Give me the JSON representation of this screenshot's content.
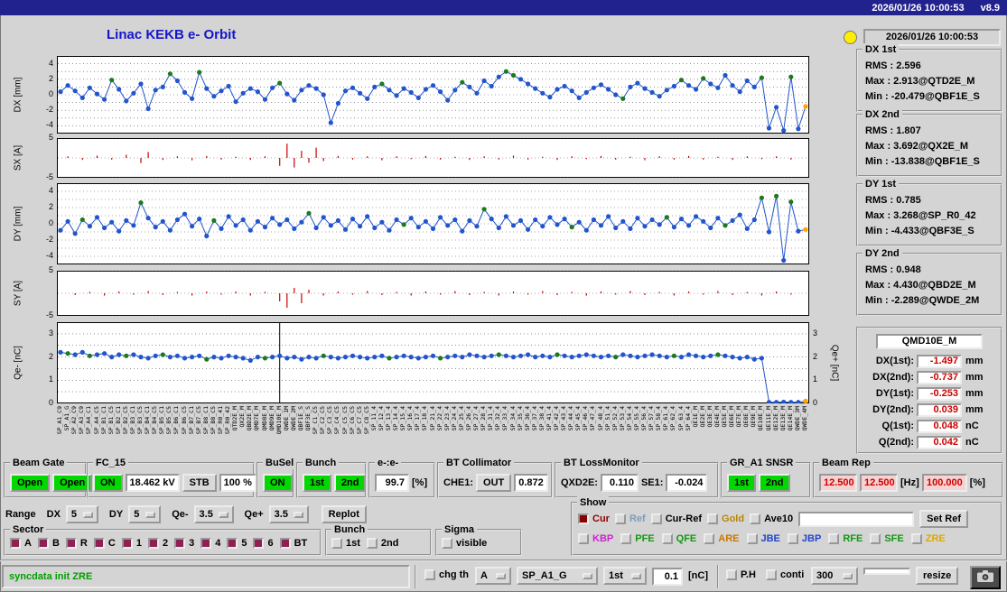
{
  "topbar": {
    "clock": "2026/01/26 10:00:53",
    "version": "v8.9"
  },
  "title": "Linac KEKB e- Orbit",
  "status_panel": {
    "timestamp": "2026/01/26 10:00:53",
    "groups": [
      {
        "label": "DX 1st",
        "rms": "RMS : 2.596",
        "max": "Max : 2.913@QTD2E_M",
        "min": "Min : -20.479@QBF1E_S"
      },
      {
        "label": "DX 2nd",
        "rms": "RMS : 1.807",
        "max": "Max : 3.692@QX2E_M",
        "min": "Min : -13.838@QBF1E_S"
      },
      {
        "label": "DY 1st",
        "rms": "RMS : 0.785",
        "max": "Max : 3.268@SP_R0_42",
        "min": "Min : -4.433@QBF3E_S"
      },
      {
        "label": "DY 2nd",
        "rms": "RMS : 0.948",
        "max": "Max : 4.430@QBD2E_M",
        "min": "Min : -2.289@QWDE_2M"
      }
    ],
    "monitor": {
      "name": "QMD10E_M",
      "rows": [
        {
          "label": "DX(1st):",
          "value": "-1.497",
          "unit": "mm"
        },
        {
          "label": "DX(2nd):",
          "value": "-0.737",
          "unit": "mm"
        },
        {
          "label": "DY(1st):",
          "value": "-0.253",
          "unit": "mm"
        },
        {
          "label": "DY(2nd):",
          "value": "0.039",
          "unit": "mm"
        },
        {
          "label": "Q(1st):",
          "value": "0.048",
          "unit": "nC"
        },
        {
          "label": "Q(2nd):",
          "value": "0.042",
          "unit": "nC"
        }
      ]
    }
  },
  "controls": {
    "beam_gate": {
      "label": "Beam Gate",
      "open1": "Open",
      "open2": "Open"
    },
    "fc15": {
      "label": "FC_15",
      "on": "ON",
      "kv": "18.462 kV",
      "stb": "STB",
      "pct": "100 %"
    },
    "busel": {
      "label": "BuSel",
      "on": "ON"
    },
    "bunch_top": {
      "label": "Bunch",
      "b1": "1st",
      "b2": "2nd"
    },
    "ee": {
      "label": "e-:e-",
      "value": "99.7",
      "unit": "[%]"
    },
    "bt_collimator": {
      "label": "BT Collimator",
      "che1": "CHE1:",
      "out": "OUT",
      "value": "0.872"
    },
    "bt_lossmonitor": {
      "label": "BT LossMonitor",
      "l1": "QXD2E:",
      "v1": "0.110",
      "l2": "SE1:",
      "v2": "-0.024"
    },
    "gr_a1": {
      "label": "GR_A1 SNSR",
      "b1": "1st",
      "b2": "2nd"
    },
    "beam_rep": {
      "label": "Beam Rep",
      "v1": "12.500",
      "v2": "12.500",
      "hz": "[Hz]",
      "v3": "100.000",
      "pct": "[%]"
    },
    "range": {
      "title": "Range",
      "dx_label": "DX",
      "dx": "5",
      "dy_label": "DY",
      "dy": "5",
      "qem_label": "Qe-",
      "qem": "3.5",
      "qep_label": "Qe+",
      "qep": "3.5",
      "replot": "Replot"
    },
    "sector": {
      "label": "Sector",
      "check_color": "#8b2252",
      "items": [
        "A",
        "B",
        "R",
        "C",
        "1",
        "2",
        "3",
        "4",
        "5",
        "6",
        "BT"
      ]
    },
    "bunch_bottom": {
      "label": "Bunch",
      "items": [
        "1st",
        "2nd"
      ]
    },
    "sigma": {
      "label": "Sigma",
      "items": [
        "visible"
      ]
    },
    "show": {
      "label": "Show",
      "row1": [
        {
          "text": "Cur",
          "color": "#8b0000",
          "checked": true,
          "box": "#8b0000"
        },
        {
          "text": "Ref",
          "color": "#7f9db9",
          "checked": false
        },
        {
          "text": "Cur-Ref",
          "color": "#000000",
          "checked": false
        },
        {
          "text": "Gold",
          "color": "#b8860b",
          "checked": false
        },
        {
          "text": "Ave10",
          "color": "#000000",
          "checked": false
        }
      ],
      "ref_input": "",
      "set_ref": "Set Ref",
      "row2": [
        {
          "text": "KBP",
          "color": "#cc22cc"
        },
        {
          "text": "PFE",
          "color": "#119911"
        },
        {
          "text": "QFE",
          "color": "#119911"
        },
        {
          "text": "ARE",
          "color": "#cc7700"
        },
        {
          "text": "JBE",
          "color": "#2244cc"
        },
        {
          "text": "JBP",
          "color": "#2244cc"
        },
        {
          "text": "RFE",
          "color": "#119911"
        },
        {
          "text": "SFE",
          "color": "#119911"
        },
        {
          "text": "ZRE",
          "color": "#e0a800"
        }
      ]
    },
    "footer": {
      "status": "syncdata init ZRE",
      "chg_th": "chg th",
      "dd_a": "A",
      "dd_sp": "SP_A1_G",
      "dd_bunch": "1st",
      "threshold": "0.1",
      "unit": "[nC]",
      "ph": "P.H",
      "conti": "conti",
      "dd_rep": "300",
      "blank": "",
      "resize": "resize"
    }
  },
  "chart_data": {
    "xlabels": [
      "SP_A1_C9",
      "SP_A1_G",
      "SP_A2_C9",
      "SP_A3_C9",
      "SP_A4_C1",
      "SP_A4_C5",
      "SP_B1_C1",
      "SP_B1_C5",
      "SP_B2_C1",
      "SP_B2_C5",
      "SP_B3_C1",
      "SP_B3_C5",
      "SP_B4_C1",
      "SP_B4_C5",
      "SP_B5_C1",
      "SP_B5_C5",
      "SP_B6_C1",
      "SP_B6_C5",
      "SP_B7_C1",
      "SP_B7_C5",
      "SP_B8_C1",
      "SP_B8_C5",
      "SP_R0_41",
      "SP_R0_42",
      "QTD2E_M",
      "QX2E_M",
      "QBD2E_M",
      "QMD7E_M",
      "QMD8E_M",
      "QMD9E_M",
      "QMD10E_M",
      "QWDE_1M",
      "QWDE_2M",
      "QBF1E_S",
      "QBF3E_S",
      "SP_C1_C5",
      "SP_C2_C5",
      "SP_C3_C5",
      "SP_C4_C5",
      "SP_C5_C5",
      "SP_C6_C5",
      "SP_C7_C5",
      "SP_C8_C5",
      "SP_11_4",
      "SP_12_4",
      "SP_13_4",
      "SP_14_4",
      "SP_15_4",
      "SP_16_4",
      "SP_17_4",
      "SP_18_4",
      "SP_21_4",
      "SP_22_4",
      "SP_23_4",
      "SP_24_4",
      "SP_25_4",
      "SP_26_4",
      "SP_27_4",
      "SP_28_4",
      "SP_31_4",
      "SP_32_4",
      "SP_33_4",
      "SP_34_4",
      "SP_35_4",
      "SP_36_4",
      "SP_37_4",
      "SP_38_4",
      "SP_41_4",
      "SP_42_4",
      "SP_43_4",
      "SP_44_4",
      "SP_45_4",
      "SP_46_4",
      "SP_47_4",
      "SP_48_4",
      "SP_51_4",
      "SP_52_4",
      "SP_53_4",
      "SP_54_4",
      "SP_55_4",
      "SP_56_4",
      "SP_57_4",
      "SP_58_4",
      "SP_61_4",
      "SP_62_4",
      "SP_63_4",
      "SP_64_4",
      "QE1E_M",
      "QE2E_M",
      "QE3E_M",
      "QE4E_M",
      "QE5E_M",
      "QE6E_M",
      "QE7E_M",
      "QE8E_M",
      "QE9E_M",
      "QE10E_M",
      "QE11E_M",
      "QE12E_M",
      "QE13E_M",
      "QE14E_M",
      "QWDE_3M",
      "QWDE_4M"
    ],
    "dx": {
      "type": "scatter",
      "ylabel": "DX [mm]",
      "range": [
        -5,
        5
      ],
      "ticks": [
        4,
        2,
        0,
        -2,
        -4
      ],
      "grid": [
        4,
        3,
        2,
        1,
        0,
        -1,
        -2,
        -3,
        -4
      ],
      "values": [
        0.4,
        1.2,
        0.5,
        -0.4,
        0.9,
        0.1,
        -0.6,
        1.9,
        0.7,
        -0.8,
        0.2,
        1.4,
        -1.8,
        0.6,
        1.0,
        2.7,
        1.8,
        0.3,
        -0.5,
        2.9,
        0.8,
        -0.2,
        0.5,
        1.1,
        -0.9,
        0.2,
        0.8,
        0.4,
        -0.6,
        0.9,
        1.5,
        0.1,
        -0.7,
        0.6,
        1.2,
        0.8,
        0.0,
        -3.6,
        -1.1,
        0.5,
        0.9,
        0.2,
        -0.5,
        1.0,
        1.4,
        0.6,
        -0.1,
        0.8,
        0.3,
        -0.4,
        0.7,
        1.2,
        0.4,
        -0.7,
        0.6,
        1.6,
        1.0,
        0.2,
        1.8,
        1.1,
        2.3,
        3.0,
        2.5,
        2.0,
        1.4,
        0.8,
        0.2,
        -0.3,
        0.7,
        1.1,
        0.5,
        -0.4,
        0.3,
        0.9,
        1.3,
        0.7,
        0.0,
        -0.5,
        1.0,
        1.5,
        0.8,
        0.3,
        -0.2,
        0.6,
        1.1,
        1.9,
        1.2,
        0.7,
        2.1,
        1.4,
        0.9,
        2.5,
        1.2,
        0.4,
        1.8,
        1.0,
        2.2,
        -4.3,
        -1.6,
        -4.6,
        2.3,
        -4.4,
        -1.5
      ],
      "green_idx": [
        7,
        15,
        19,
        30,
        44,
        55,
        61,
        62,
        77,
        85,
        88,
        96,
        100
      ],
      "colors": {
        "line": "#2255cc",
        "green": "#1c7a1c",
        "last": "#ffa500"
      }
    },
    "sx": {
      "type": "stem",
      "ylabel": "SX [A]",
      "range": [
        -5,
        5
      ],
      "ticks": [
        5,
        -5
      ],
      "grid": [
        5,
        0,
        -5
      ],
      "color": "#cc0000",
      "stems": [
        [
          1,
          0.4
        ],
        [
          3,
          -0.5
        ],
        [
          5,
          0.6
        ],
        [
          7,
          -0.4
        ],
        [
          9,
          0.8
        ],
        [
          11,
          -1.3
        ],
        [
          12,
          1.5
        ],
        [
          14,
          -0.5
        ],
        [
          16,
          0.4
        ],
        [
          18,
          -0.6
        ],
        [
          20,
          0.5
        ],
        [
          22,
          -0.4
        ],
        [
          24,
          0.3
        ],
        [
          26,
          -0.5
        ],
        [
          28,
          0.4
        ],
        [
          30,
          -2.0
        ],
        [
          31,
          3.6
        ],
        [
          32,
          -2.4
        ],
        [
          33,
          1.8
        ],
        [
          34,
          -1.2
        ],
        [
          35,
          2.6
        ],
        [
          36,
          -0.8
        ],
        [
          38,
          0.5
        ],
        [
          40,
          -0.4
        ],
        [
          42,
          0.4
        ],
        [
          44,
          -0.6
        ],
        [
          46,
          0.4
        ],
        [
          48,
          -0.3
        ],
        [
          50,
          0.5
        ],
        [
          52,
          -0.4
        ],
        [
          54,
          0.3
        ],
        [
          56,
          -0.5
        ],
        [
          58,
          0.4
        ],
        [
          60,
          -0.4
        ],
        [
          62,
          0.6
        ],
        [
          64,
          -0.4
        ],
        [
          66,
          0.3
        ],
        [
          68,
          -0.5
        ],
        [
          70,
          0.4
        ],
        [
          72,
          -0.3
        ],
        [
          74,
          0.5
        ],
        [
          76,
          -0.4
        ],
        [
          78,
          0.3
        ],
        [
          80,
          -0.6
        ],
        [
          82,
          0.4
        ],
        [
          84,
          -0.4
        ],
        [
          86,
          0.5
        ],
        [
          88,
          -0.4
        ],
        [
          90,
          0.3
        ],
        [
          92,
          -0.5
        ],
        [
          94,
          0.4
        ],
        [
          96,
          -0.3
        ],
        [
          98,
          0.4
        ],
        [
          100,
          -0.4
        ]
      ]
    },
    "dy": {
      "type": "scatter",
      "ylabel": "DY [mm]",
      "range": [
        -5,
        5
      ],
      "ticks": [
        4,
        2,
        0,
        -2,
        -4
      ],
      "grid": [
        4,
        3,
        2,
        1,
        0,
        -1,
        -2,
        -3,
        -4
      ],
      "values": [
        -0.8,
        0.3,
        -1.2,
        0.5,
        -0.3,
        0.8,
        -0.5,
        0.2,
        -0.9,
        0.4,
        -0.2,
        2.6,
        0.7,
        -0.4,
        0.3,
        -0.8,
        0.5,
        1.2,
        -0.3,
        0.6,
        -1.5,
        0.4,
        -0.6,
        0.9,
        -0.2,
        0.5,
        -0.8,
        0.3,
        -0.4,
        0.7,
        -0.1,
        0.5,
        -0.6,
        0.2,
        1.3,
        -0.5,
        0.8,
        -0.2,
        0.4,
        -0.7,
        0.6,
        -0.3,
        0.9,
        -0.5,
        0.2,
        -0.8,
        0.5,
        -0.1,
        0.7,
        -0.4,
        0.3,
        -0.6,
        0.8,
        -0.2,
        0.5,
        -0.9,
        0.4,
        -0.3,
        1.8,
        0.6,
        -0.5,
        0.9,
        -0.2,
        0.4,
        -0.7,
        0.5,
        -0.3,
        0.8,
        -0.1,
        0.6,
        -0.4,
        0.2,
        -0.8,
        0.5,
        -0.2,
        0.9,
        -0.5,
        0.3,
        -0.6,
        0.7,
        -0.3,
        0.5,
        -0.1,
        0.8,
        -0.4,
        0.6,
        -0.2,
        0.9,
        0.3,
        -0.5,
        0.7,
        -0.2,
        0.4,
        1.1,
        -0.6,
        0.5,
        3.2,
        -1.0,
        3.4,
        -4.5,
        2.7,
        -0.9,
        -0.7
      ],
      "green_idx": [
        3,
        11,
        21,
        34,
        47,
        58,
        70,
        83,
        91,
        96,
        98,
        100
      ],
      "colors": {
        "line": "#2255cc",
        "green": "#1c7a1c",
        "last": "#ffa500"
      }
    },
    "sy": {
      "type": "stem",
      "ylabel": "SY [A]",
      "range": [
        -5,
        5
      ],
      "ticks": [
        5,
        -5
      ],
      "grid": [
        5,
        0,
        -5
      ],
      "color": "#cc0000",
      "stems": [
        [
          2,
          -0.4
        ],
        [
          4,
          0.3
        ],
        [
          6,
          -0.5
        ],
        [
          8,
          0.4
        ],
        [
          10,
          -0.3
        ],
        [
          12,
          0.5
        ],
        [
          14,
          -0.4
        ],
        [
          16,
          0.3
        ],
        [
          18,
          -0.5
        ],
        [
          20,
          0.4
        ],
        [
          22,
          -0.3
        ],
        [
          24,
          0.4
        ],
        [
          26,
          -0.5
        ],
        [
          28,
          0.3
        ],
        [
          30,
          -1.8
        ],
        [
          31,
          -3.2
        ],
        [
          32,
          1.2
        ],
        [
          33,
          -2.2
        ],
        [
          34,
          0.8
        ],
        [
          36,
          -0.5
        ],
        [
          38,
          0.4
        ],
        [
          40,
          -0.3
        ],
        [
          42,
          0.5
        ],
        [
          44,
          -0.4
        ],
        [
          46,
          0.3
        ],
        [
          48,
          -0.5
        ],
        [
          50,
          0.4
        ],
        [
          52,
          -0.3
        ],
        [
          54,
          0.5
        ],
        [
          56,
          -0.4
        ],
        [
          58,
          0.3
        ],
        [
          60,
          -0.5
        ],
        [
          62,
          0.4
        ],
        [
          64,
          -0.3
        ],
        [
          66,
          0.5
        ],
        [
          68,
          -0.4
        ],
        [
          70,
          0.3
        ],
        [
          72,
          -0.5
        ],
        [
          74,
          0.4
        ],
        [
          76,
          -0.3
        ],
        [
          78,
          0.5
        ],
        [
          80,
          -0.4
        ],
        [
          82,
          0.3
        ],
        [
          84,
          -0.5
        ],
        [
          86,
          0.4
        ],
        [
          88,
          -0.3
        ],
        [
          90,
          0.5
        ],
        [
          92,
          -0.4
        ],
        [
          94,
          0.3
        ],
        [
          96,
          -0.5
        ],
        [
          98,
          0.4
        ],
        [
          100,
          -0.3
        ]
      ]
    },
    "qe": {
      "type": "scatter",
      "ylabel": "Qe- [nC]",
      "ylabel_right": "Qe+ [nC]",
      "range": [
        0,
        3.5
      ],
      "ticks": [
        3,
        2,
        1,
        0
      ],
      "ticks_right": [
        3,
        2,
        1,
        0
      ],
      "grid": [
        3,
        2.5,
        2,
        1.5,
        1,
        0.5
      ],
      "marker_idx": 30,
      "values": [
        2.2,
        2.15,
        2.1,
        2.2,
        2.05,
        2.1,
        2.15,
        2.0,
        2.1,
        2.05,
        2.1,
        2.0,
        1.95,
        2.05,
        2.1,
        2.0,
        2.05,
        1.95,
        2.0,
        2.05,
        1.9,
        2.0,
        1.95,
        2.05,
        2.0,
        1.95,
        1.85,
        2.0,
        1.95,
        2.0,
        2.05,
        1.95,
        2.0,
        1.9,
        2.0,
        1.95,
        2.05,
        2.0,
        1.95,
        2.0,
        2.05,
        2.0,
        1.95,
        2.0,
        2.05,
        1.95,
        2.0,
        2.05,
        2.0,
        1.95,
        2.0,
        2.05,
        1.95,
        2.0,
        2.05,
        2.0,
        2.1,
        2.05,
        2.0,
        2.05,
        2.1,
        2.05,
        2.0,
        2.05,
        2.1,
        2.0,
        2.05,
        2.0,
        2.1,
        2.05,
        2.0,
        2.05,
        2.1,
        2.05,
        2.0,
        2.05,
        2.0,
        2.1,
        2.05,
        2.0,
        2.05,
        2.1,
        2.05,
        2.0,
        2.05,
        2.0,
        2.1,
        2.05,
        2.0,
        2.05,
        2.1,
        2.05,
        2.0,
        1.95,
        2.0,
        1.9,
        1.95,
        0.05,
        0.05,
        0.06,
        0.05,
        0.05,
        0.1
      ],
      "green_idx": [
        1,
        4,
        9,
        14,
        20,
        28,
        36,
        45,
        52,
        60,
        68,
        76,
        84,
        90
      ],
      "colors": {
        "line": "#2255cc",
        "green": "#1c7a1c",
        "last": "#ffa500"
      }
    }
  }
}
